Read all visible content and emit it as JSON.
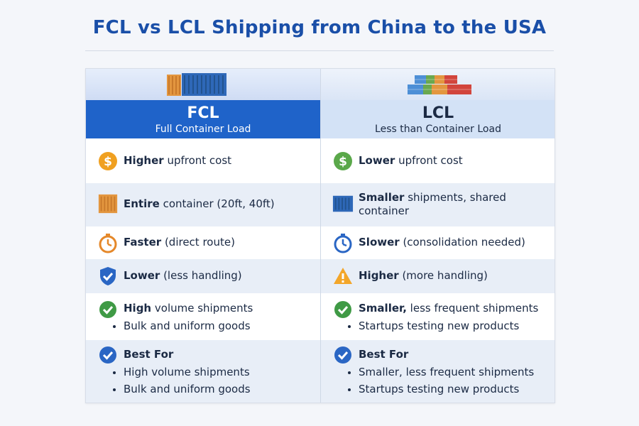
{
  "page": {
    "title": "FCL vs LCL Shipping from China to the USA"
  },
  "fcl": {
    "name": "FCL",
    "full_name": "Full Container Load",
    "cost": {
      "strong": "Higher",
      "rest": " upfront cost"
    },
    "size": {
      "strong": "Entire",
      "rest": " container (20ft, 40ft)"
    },
    "speed": {
      "strong": "Faster",
      "rest": " (direct route)"
    },
    "risk": {
      "strong": "Lower",
      "rest": " (less handling)"
    },
    "use": {
      "strong": "High",
      "rest": " volume shipments",
      "bullet": "Bulk and uniform goods"
    },
    "best_for": {
      "label": "Best For",
      "items": [
        "High volume shipments",
        "Bulk and uniform goods"
      ]
    }
  },
  "lcl": {
    "name": "LCL",
    "full_name": "Less than Container Load",
    "cost": {
      "strong": "Lower",
      "rest": " upfront cost"
    },
    "size": {
      "strong": "Smaller",
      "rest": " shipments, shared container"
    },
    "speed": {
      "strong": "Slower",
      "rest": " (consolidation needed)"
    },
    "risk": {
      "strong": "Higher",
      "rest": " (more handling)"
    },
    "use": {
      "strong": "Smaller,",
      "rest": " less frequent shipments",
      "bullet": "Startups testing new products"
    },
    "best_for": {
      "label": "Best For",
      "items": [
        "Smaller, less frequent shipments",
        "Startups testing new products"
      ]
    }
  },
  "colors": {
    "title": "#1a4fa8",
    "fcl_header": "#1f63c9",
    "lcl_header": "#d3e2f6",
    "dollar_orange": "#f0a020",
    "dollar_green": "#5aa84a",
    "check_green": "#3f9a45",
    "check_blue": "#2a66c4",
    "warning": "#f3a62a"
  },
  "icons": {
    "fcl_header": "container-icon",
    "lcl_header": "stacked-containers-icon",
    "cost_fcl": "dollar-icon",
    "cost_lcl": "dollar-icon",
    "size_fcl": "container-icon",
    "size_lcl": "container-icon",
    "speed_fcl": "stopwatch-icon",
    "speed_lcl": "stopwatch-icon",
    "risk_fcl": "shield-check-icon",
    "risk_lcl": "warning-icon",
    "use": "check-circle-icon",
    "best_for": "check-circle-icon"
  }
}
